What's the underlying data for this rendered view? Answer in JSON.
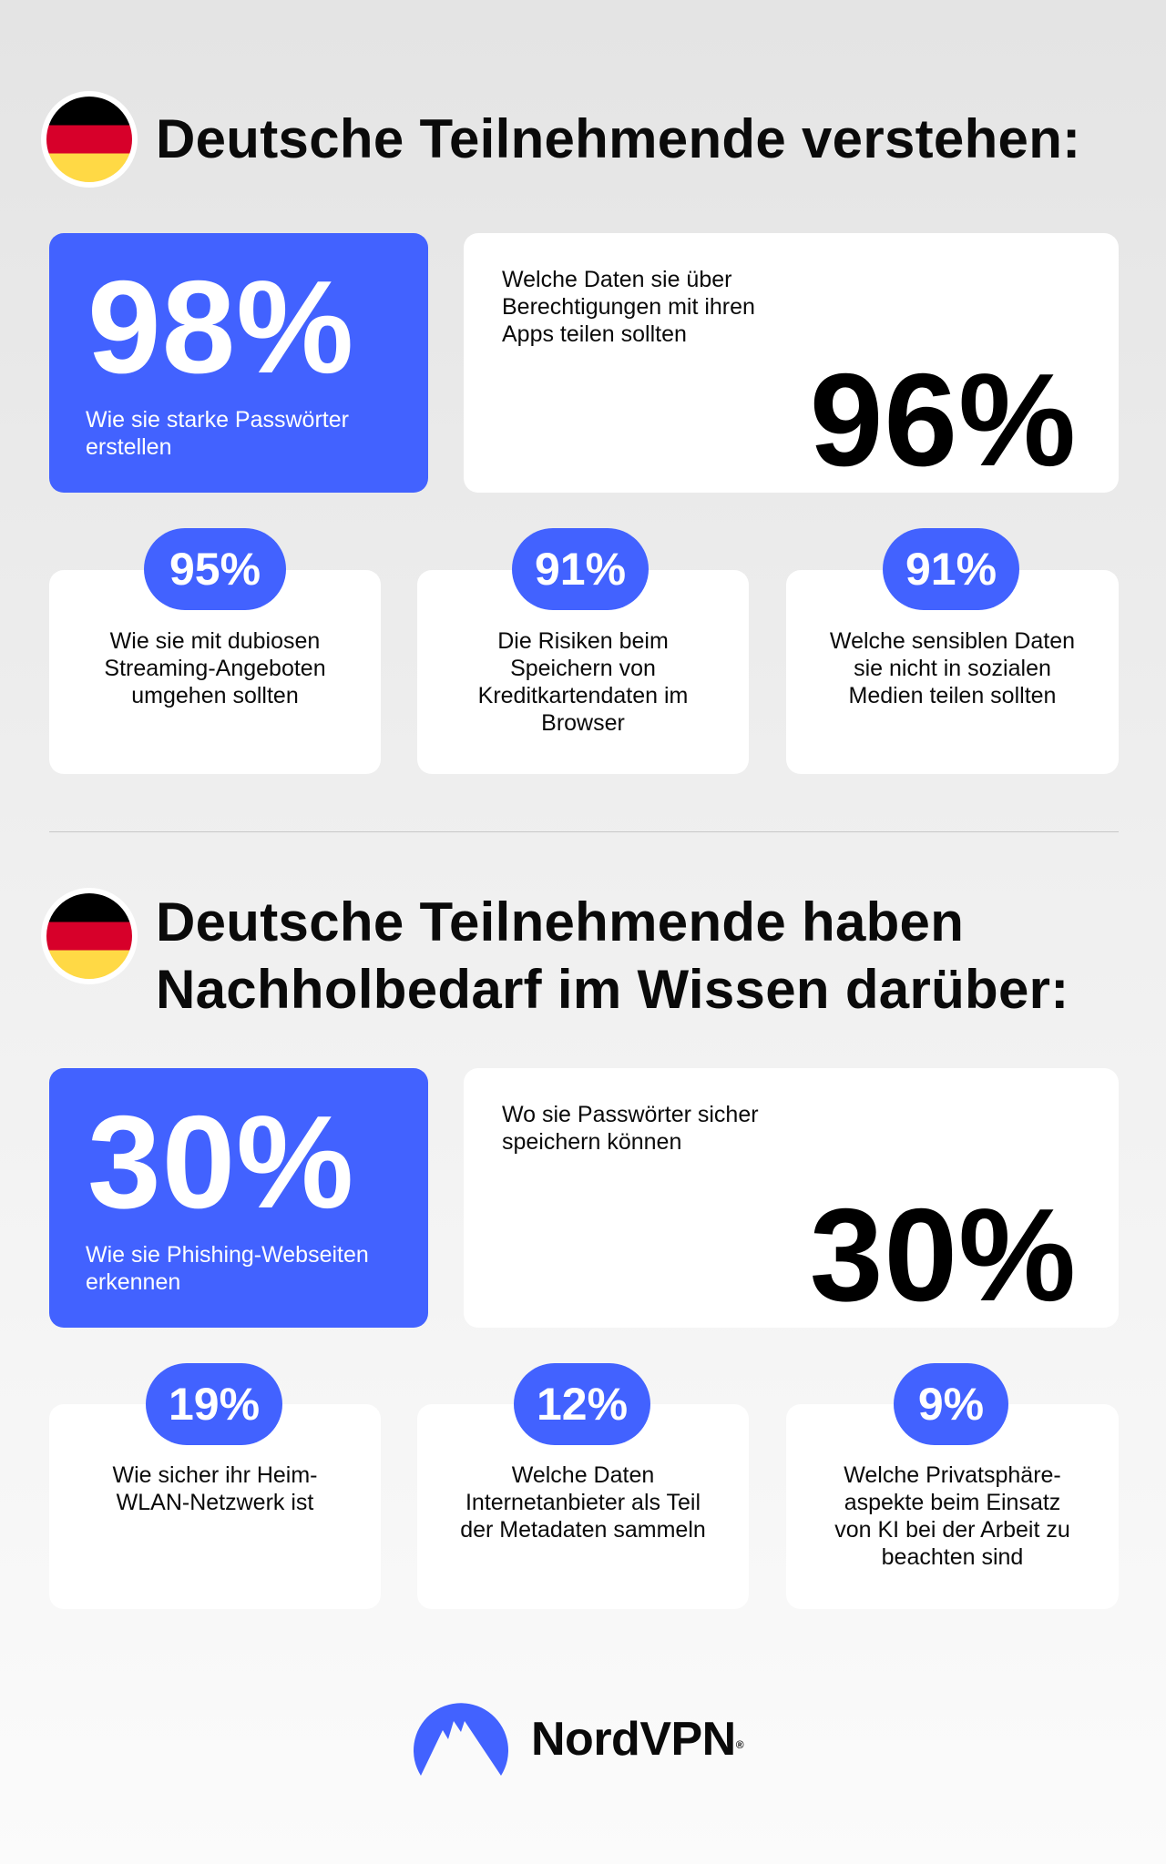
{
  "section1": {
    "title": "Deutsche Teilnehmende verstehen:",
    "flag_icon": "germany-flag",
    "big": [
      {
        "value": "98%",
        "label": "Wie sie starke Passwörter erstellen"
      },
      {
        "value": "96%",
        "label": "Welche Daten sie über Berechtigungen mit ihren Apps teilen sollten"
      }
    ],
    "small": [
      {
        "value": "95%",
        "label": "Wie sie mit dubiosen Streaming-Angeboten umgehen sollten"
      },
      {
        "value": "91%",
        "label": "Die Risiken beim Speichern von Kreditkartendaten im Browser"
      },
      {
        "value": "91%",
        "label": "Welche sensiblen Daten sie nicht in sozialen Medien teilen sollten"
      }
    ]
  },
  "section2": {
    "title": "Deutsche Teilnehmende haben Nachholbedarf im Wissen darüber:",
    "flag_icon": "germany-flag",
    "big": [
      {
        "value": "30%",
        "label": "Wie sie Phishing-Webseiten erkennen"
      },
      {
        "value": "30%",
        "label": "Wo sie Passwörter sicher speichern können"
      }
    ],
    "small": [
      {
        "value": "19%",
        "label": "Wie sicher ihr Heim-WLAN-Netzwerk ist"
      },
      {
        "value": "12%",
        "label": "Welche Daten Internetanbieter als Teil der Metadaten sammeln"
      },
      {
        "value": "9%",
        "label": "Welche Privatsphäre-aspekte beim Einsatz von KI bei der Arbeit zu beachten sind"
      }
    ]
  },
  "logo": {
    "text": "NordVPN",
    "mark": "®",
    "icon": "nordvpn-mountain-logo"
  },
  "colors": {
    "accent": "#4262ff",
    "flag_black": "#000000",
    "flag_red": "#d7002a",
    "flag_gold": "#ffd945"
  }
}
